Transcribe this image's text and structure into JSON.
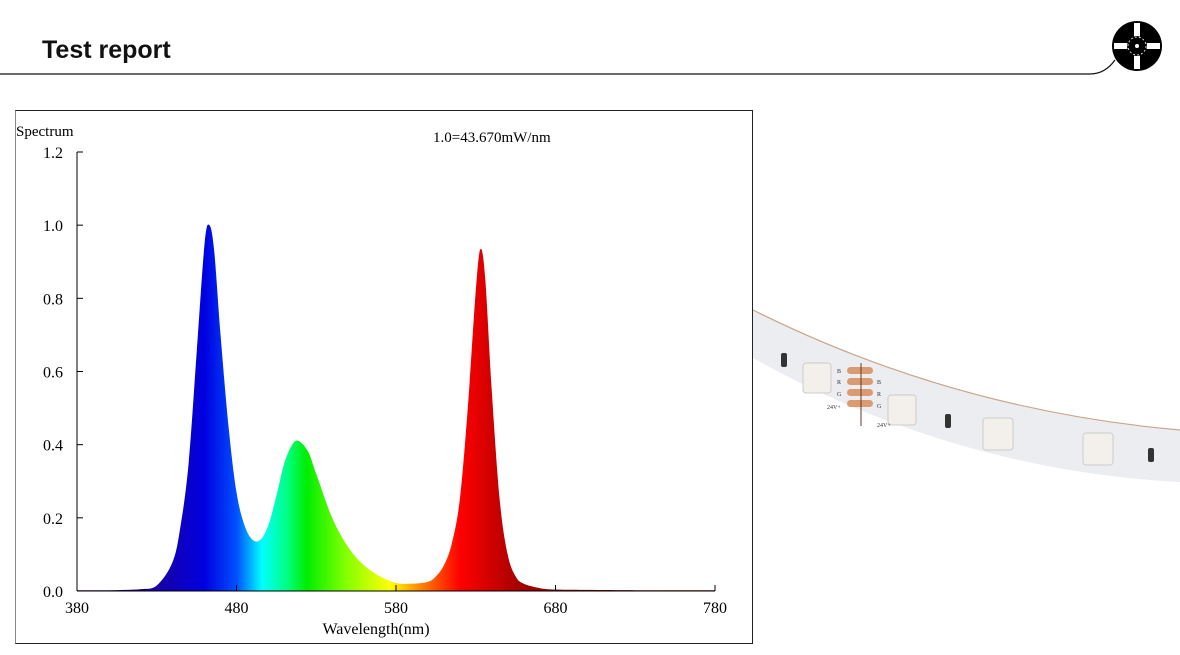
{
  "header": {
    "title": "Test report",
    "logo_icon": "led-reel-icon"
  },
  "chart_data": {
    "type": "area",
    "ylabel": "Spectrum",
    "xlabel": "Wavelength(nm)",
    "annotation": "1.0=43.670mW/nm",
    "xlim": [
      380,
      780
    ],
    "ylim": [
      0,
      1.2
    ],
    "x_ticks": [
      "380",
      "480",
      "580",
      "680",
      "780"
    ],
    "y_ticks": [
      "0.0",
      "0.2",
      "0.4",
      "0.6",
      "0.8",
      "1.0",
      "1.2"
    ],
    "grid": false,
    "fill": "wavelength-rainbow",
    "x": [
      380,
      390,
      400,
      410,
      420,
      430,
      440,
      445,
      450,
      455,
      460,
      463,
      466,
      470,
      475,
      480,
      485,
      490,
      495,
      500,
      505,
      510,
      515,
      519,
      525,
      530,
      540,
      550,
      560,
      570,
      580,
      590,
      600,
      605,
      610,
      615,
      620,
      625,
      630,
      633,
      636,
      640,
      645,
      650,
      655,
      660,
      670,
      680,
      700,
      740,
      780
    ],
    "y": [
      0.002,
      0.002,
      0.002,
      0.003,
      0.005,
      0.015,
      0.08,
      0.18,
      0.35,
      0.65,
      0.95,
      1.0,
      0.93,
      0.7,
      0.45,
      0.27,
      0.18,
      0.14,
      0.14,
      0.18,
      0.26,
      0.35,
      0.4,
      0.41,
      0.38,
      0.32,
      0.2,
      0.12,
      0.07,
      0.04,
      0.022,
      0.02,
      0.025,
      0.04,
      0.07,
      0.13,
      0.25,
      0.5,
      0.82,
      0.935,
      0.85,
      0.55,
      0.25,
      0.1,
      0.04,
      0.02,
      0.008,
      0.004,
      0.003,
      0.002,
      0.002
    ]
  },
  "photo": {
    "pad_labels_left": [
      "B",
      "R",
      "G",
      "24V+"
    ],
    "pad_labels_right": [
      "B",
      "R",
      "G",
      "24V+"
    ]
  }
}
